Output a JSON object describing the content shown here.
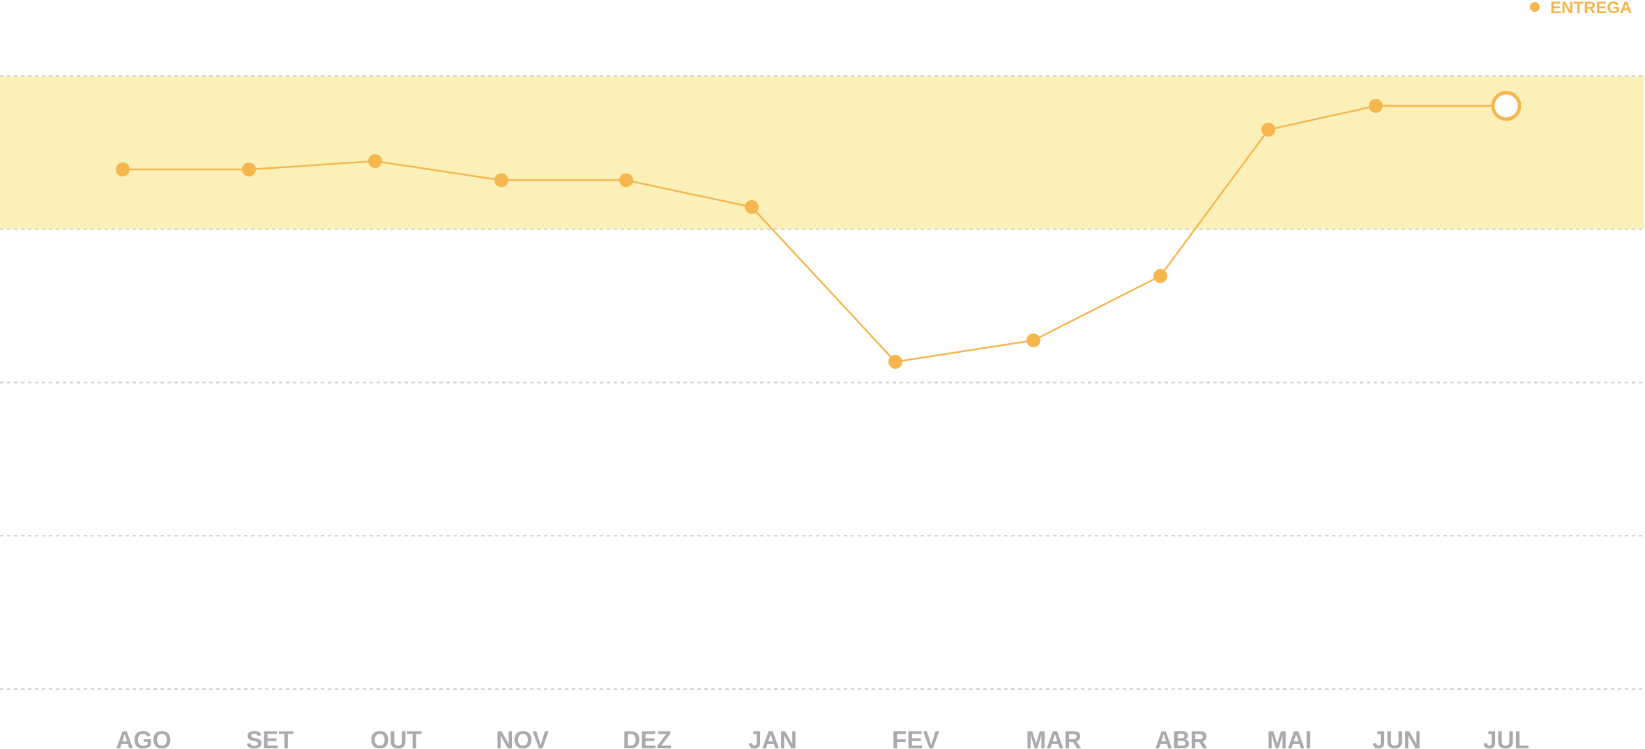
{
  "chart_data": {
    "type": "line",
    "title": "",
    "xlabel": "",
    "ylabel": "",
    "categories": [
      "AGO",
      "SET",
      "OUT",
      "NOV",
      "DEZ",
      "JAN",
      "FEV",
      "MAR",
      "ABR",
      "MAI",
      "JUN",
      "JUL"
    ],
    "series": [
      {
        "name": "ENTREGA",
        "values": [
          87.8,
          87.8,
          88.9,
          86.4,
          86.4,
          82.9,
          62.7,
          65.5,
          73.9,
          93.0,
          96.1,
          96.1
        ],
        "last_point_hollow": true
      }
    ],
    "ylim": [
      20,
      100
    ],
    "target_band": [
      80,
      100
    ],
    "gridlines": [
      20,
      40,
      60,
      80,
      100
    ],
    "grid": true,
    "legend": "top-right",
    "colors": {
      "line": "#F6B64E",
      "band": "#FBF1B8",
      "grid": "#CFCFCF",
      "tick_text": "#A9A9AE",
      "legend_text": "#F6B64E"
    }
  }
}
